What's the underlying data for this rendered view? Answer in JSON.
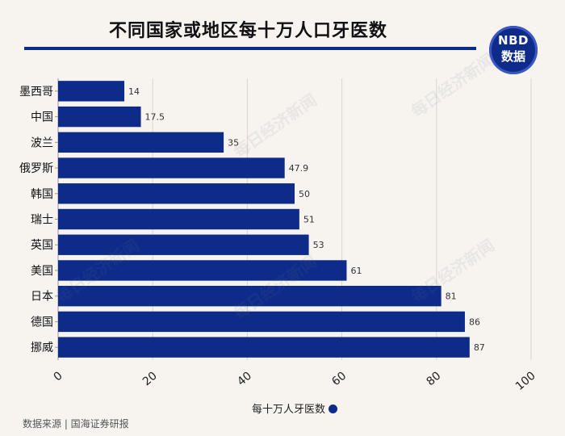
{
  "title": "不同国家或地区每十万人口牙医数",
  "logo": {
    "line1": "NBD",
    "line2": "数据"
  },
  "source": "数据来源 | 国海证券研报",
  "chart_data": {
    "type": "bar",
    "orientation": "horizontal",
    "categories": [
      "墨西哥",
      "中国",
      "波兰",
      "俄罗斯",
      "韩国",
      "瑞士",
      "英国",
      "美国",
      "日本",
      "德国",
      "挪威"
    ],
    "series": [
      {
        "name": "每十万人牙医数",
        "values": [
          14,
          17.5,
          35,
          47.9,
          50,
          51,
          53,
          61,
          81,
          86,
          87
        ],
        "color": "#0d2c8a"
      }
    ],
    "value_labels": [
      "14",
      "17.5",
      "35",
      "47.9",
      "50",
      "51",
      "53",
      "61",
      "81",
      "86",
      "87"
    ],
    "xlim": [
      0,
      100
    ],
    "xticks": [
      0,
      20,
      40,
      60,
      80,
      100
    ],
    "xtick_labels": [
      "0",
      "20",
      "40",
      "60",
      "80",
      "100"
    ],
    "grid": true,
    "legend_position": "bottom-center"
  },
  "watermark": "每日经济新闻"
}
